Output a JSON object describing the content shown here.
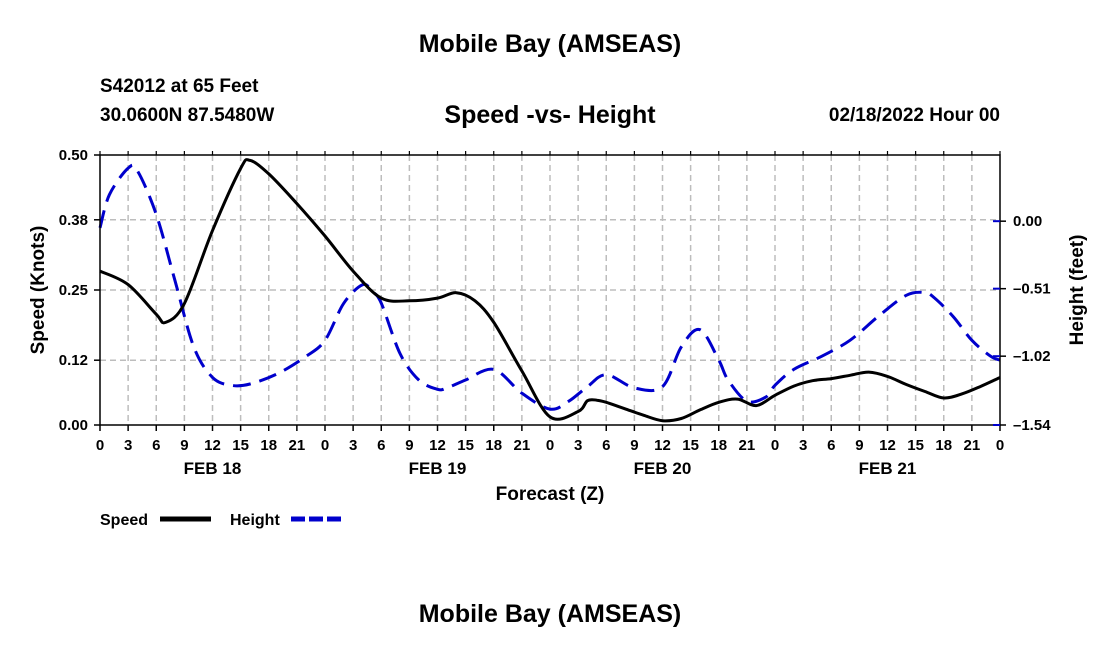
{
  "header": {
    "title": "Mobile Bay (AMSEAS)",
    "station": "S42012 at 65 Feet",
    "coords": "30.0600N  87.5480W",
    "subtitle": "Speed -vs- Height",
    "datetime": "02/18/2022 Hour 00"
  },
  "footer": {
    "title": "Mobile Bay (AMSEAS)"
  },
  "chart_data": {
    "type": "line",
    "title": "Speed -vs- Height",
    "xlabel": "Forecast (Z)",
    "ylabel": "Speed (Knots)",
    "y2label": "Height (feet)",
    "xlim": [
      0,
      96
    ],
    "ylim": [
      0,
      0.5
    ],
    "y2lim": [
      -1.54,
      0.5
    ],
    "x_ticks": [
      0,
      3,
      6,
      9,
      12,
      15,
      18,
      21,
      24,
      27,
      30,
      33,
      36,
      39,
      42,
      45,
      48,
      51,
      54,
      57,
      60,
      63,
      66,
      69,
      72,
      75,
      78,
      81,
      84,
      87,
      90,
      93,
      96
    ],
    "x_tick_labels": [
      "0",
      "3",
      "6",
      "9",
      "12",
      "15",
      "18",
      "21",
      "0",
      "3",
      "6",
      "9",
      "12",
      "15",
      "18",
      "21",
      "0",
      "3",
      "6",
      "9",
      "12",
      "15",
      "18",
      "21",
      "0",
      "3",
      "6",
      "9",
      "12",
      "15",
      "18",
      "21",
      "0"
    ],
    "day_labels": [
      {
        "x": 12,
        "label": "FEB 18"
      },
      {
        "x": 36,
        "label": "FEB 19"
      },
      {
        "x": 60,
        "label": "FEB 20"
      },
      {
        "x": 84,
        "label": "FEB 21"
      }
    ],
    "y_ticks": [
      0.0,
      0.12,
      0.25,
      0.38,
      0.5
    ],
    "y_tick_labels": [
      "0.00",
      "0.12",
      "0.25",
      "0.38",
      "0.50"
    ],
    "y2_ticks": [
      -1.54,
      -1.02,
      -0.51,
      0.0
    ],
    "y2_tick_labels": [
      "–1.54",
      "–1.02",
      "–0.51",
      "0.00"
    ],
    "grid": true,
    "series": [
      {
        "name": "Speed",
        "axis": "left",
        "color": "#000000",
        "dash": "solid",
        "x": [
          0,
          3,
          6,
          7,
          9,
          12,
          15,
          16,
          18,
          21,
          24,
          27,
          30,
          33,
          36,
          38,
          40,
          42,
          45,
          48,
          51,
          52,
          53,
          54,
          56,
          58,
          60,
          62,
          64,
          66,
          68,
          70,
          72,
          74,
          76,
          78,
          80,
          82,
          84,
          86,
          88,
          90,
          92,
          94,
          96
        ],
        "values": [
          0.285,
          0.26,
          0.205,
          0.19,
          0.225,
          0.36,
          0.475,
          0.49,
          0.465,
          0.41,
          0.35,
          0.285,
          0.235,
          0.23,
          0.235,
          0.245,
          0.23,
          0.19,
          0.1,
          0.015,
          0.025,
          0.045,
          0.046,
          0.042,
          0.03,
          0.018,
          0.008,
          0.012,
          0.028,
          0.042,
          0.048,
          0.036,
          0.055,
          0.072,
          0.082,
          0.086,
          0.092,
          0.098,
          0.09,
          0.075,
          0.062,
          0.05,
          0.058,
          0.072,
          0.088
        ]
      },
      {
        "name": "Height",
        "axis": "right",
        "color": "#0000cc",
        "dash": "dashed",
        "x": [
          0,
          1,
          3,
          4,
          6,
          8,
          10,
          12,
          14,
          16,
          19,
          22,
          24,
          26,
          28,
          29,
          30,
          32,
          34,
          36,
          37,
          39,
          42,
          45,
          48,
          50,
          52,
          54,
          57,
          60,
          62,
          64,
          66,
          67,
          69,
          71,
          72,
          74,
          77,
          80,
          83,
          86,
          88,
          89,
          91,
          93,
          95,
          96
        ],
        "values": [
          -0.05,
          0.2,
          0.4,
          0.38,
          0.05,
          -0.45,
          -0.95,
          -1.18,
          -1.24,
          -1.23,
          -1.15,
          -1.02,
          -0.9,
          -0.62,
          -0.48,
          -0.53,
          -0.62,
          -1.0,
          -1.2,
          -1.27,
          -1.26,
          -1.2,
          -1.12,
          -1.3,
          -1.42,
          -1.36,
          -1.25,
          -1.16,
          -1.26,
          -1.25,
          -0.95,
          -0.82,
          -1.05,
          -1.2,
          -1.36,
          -1.33,
          -1.24,
          -1.12,
          -1.02,
          -0.9,
          -0.72,
          -0.56,
          -0.54,
          -0.58,
          -0.72,
          -0.9,
          -1.02,
          -1.05
        ]
      }
    ],
    "legend": [
      {
        "label": "Speed",
        "color": "#000000",
        "dash": "solid"
      },
      {
        "label": "Height",
        "color": "#0000cc",
        "dash": "dashed"
      }
    ],
    "legend_position": "bottom-left"
  }
}
